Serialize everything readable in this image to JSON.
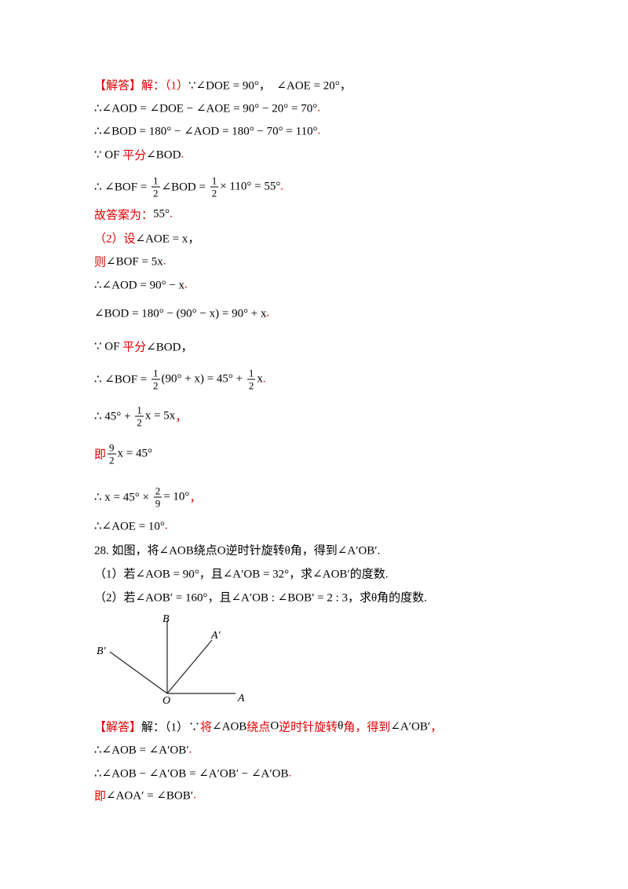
{
  "lines": [
    [
      {
        "red": "【解答】解：（1）"
      },
      "∵∠DOE = 90°，  ∠AOE = 20°，"
    ],
    [
      "∴∠AOD = ∠DOE − ∠AOE = 90° − 20° = 70°",
      {
        "red": "."
      }
    ],
    [
      "∴∠BOD = 180° − ∠AOD = 180° − 70° = 110°",
      {
        "red": "."
      }
    ],
    [
      "∵ OF ",
      {
        "red": "平分"
      },
      "∠BOD",
      {
        "red": "."
      }
    ],
    [
      "∴ ∠BOF = ",
      {
        "num": "1",
        "den": "2"
      },
      "∠BOD = ",
      {
        "num": "1",
        "den": "2"
      },
      "× 110° = 55°",
      {
        "red": "."
      }
    ],
    [
      {
        "red": "故答案为："
      },
      "55°",
      {
        "red": "."
      }
    ],
    [
      {
        "red": "（2）设"
      },
      "∠AOE = x，"
    ],
    [
      {
        "red": "则"
      },
      "∠BOF = 5x",
      {
        "red": "."
      }
    ],
    [
      "∴∠AOD = 90° − x",
      {
        "red": "."
      }
    ],
    [
      "∠BOD = 180° − (90° − x) = 90° + x",
      {
        "red": "."
      }
    ],
    [
      "∵ OF ",
      {
        "red": "平分"
      },
      "∠BOD，"
    ],
    [
      "∴ ∠BOF = ",
      {
        "num": "1",
        "den": "2"
      },
      "(90° + x) = 45° + ",
      {
        "num": "1",
        "den": "2"
      },
      "x",
      {
        "red": "."
      }
    ],
    [
      "∴ 45° + ",
      {
        "num": "1",
        "den": "2"
      },
      "x = 5x",
      {
        "red": "，"
      }
    ],
    [
      {
        "red": "即"
      },
      {
        "num": "9",
        "den": "2"
      },
      "x = 45°"
    ],
    [
      "∴ x = 45° × ",
      {
        "num": "2",
        "den": "9"
      },
      "= 10°",
      {
        "red": "，"
      }
    ],
    [
      "∴∠AOE = 10°",
      {
        "red": "."
      }
    ],
    [
      "28. 如图，将∠AOB绕点O逆时针旋转θ角，得到∠A′OB′."
    ],
    [
      "（1）若∠AOB = 90°，且∠A′OB = 32°，求∠AOB′的度数."
    ],
    [
      "（2）若∠AOB′ = 160°，且∠A′OB : ∠BOB′ = 2 : 3，求θ角的度数."
    ],
    [
      {
        "red": "【解答】"
      },
      "解：（1）∵",
      {
        "red": "将"
      },
      "∠AOB",
      {
        "red": "绕点"
      },
      "O",
      {
        "red": "逆时针旋转"
      },
      "θ",
      {
        "red": "角，得到"
      },
      "∠A′OB′",
      {
        "red": "，"
      }
    ],
    [
      "∴∠AOB = ∠A′OB′",
      {
        "red": "."
      }
    ],
    [
      "∴∠AOB − ∠A′OB = ∠A′OB′ − ∠A′OB",
      {
        "red": "."
      }
    ],
    [
      {
        "red": "即"
      },
      "∠AOA′ = ∠BOB′",
      {
        "red": "."
      }
    ]
  ],
  "figure": {
    "labels": [
      "B",
      "A′",
      "B′",
      "O",
      "A"
    ]
  }
}
